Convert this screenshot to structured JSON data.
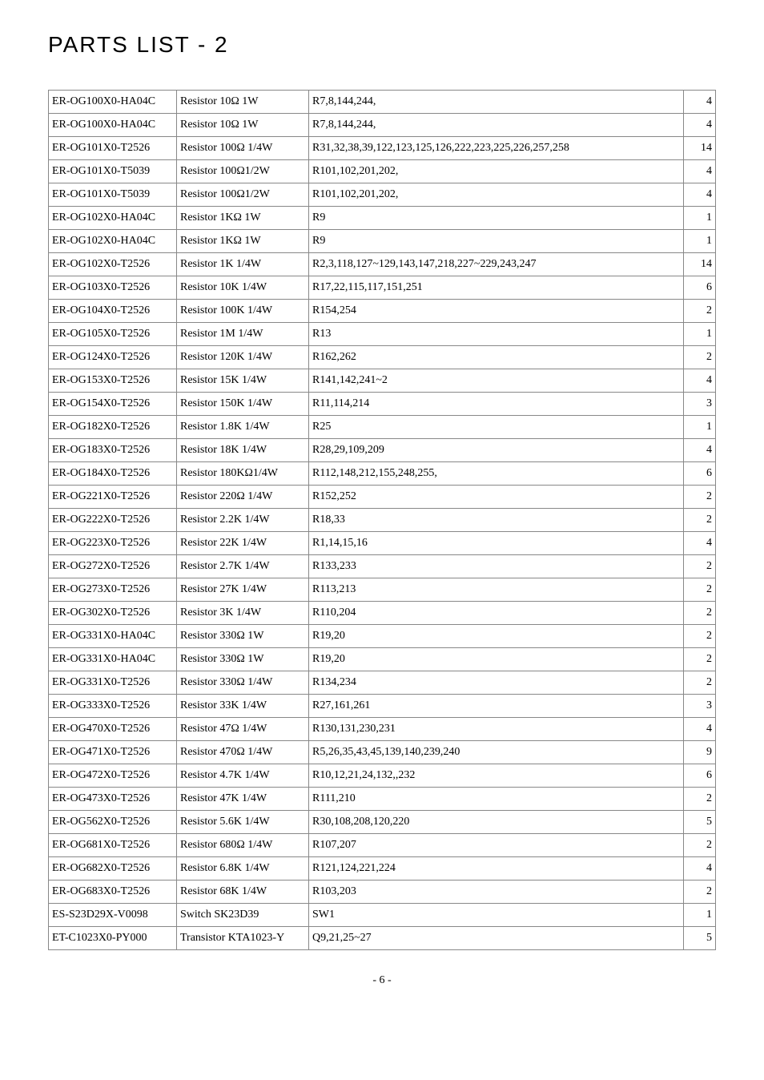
{
  "title": "PARTS LIST - 2",
  "page_number": "- 6 -",
  "table": {
    "columns": [
      "part_number",
      "description",
      "references",
      "qty"
    ],
    "rows": [
      [
        "ER-OG100X0-HA04C",
        "Resistor   10Ω  1W",
        "R7,8,144,244,",
        "4"
      ],
      [
        "ER-OG100X0-HA04C",
        "Resistor     10Ω  1W",
        "R7,8,144,244,",
        "4"
      ],
      [
        "ER-OG101X0-T2526",
        "Resistor   100Ω  1/4W",
        "R31,32,38,39,122,123,125,126,222,223,225,226,257,258",
        "14"
      ],
      [
        "ER-OG101X0-T5039",
        "Resistor     100Ω1/2W",
        "R101,102,201,202,",
        "4"
      ],
      [
        "ER-OG101X0-T5039",
        "Resistor     100Ω1/2W",
        "R101,102,201,202,",
        "4"
      ],
      [
        "ER-OG102X0-HA04C",
        "Resistor     1KΩ  1W",
        "R9",
        "1"
      ],
      [
        "ER-OG102X0-HA04C",
        "Resistor     1KΩ  1W",
        "R9",
        "1"
      ],
      [
        "ER-OG102X0-T2526",
        "Resistor   1K 1/4W",
        "R2,3,118,127~129,143,147,218,227~229,243,247",
        "14"
      ],
      [
        "ER-OG103X0-T2526",
        "Resistor     10K 1/4W",
        "R17,22,115,117,151,251",
        "6"
      ],
      [
        "ER-OG104X0-T2526",
        "Resistor   100K 1/4W",
        "R154,254",
        "2"
      ],
      [
        "ER-OG105X0-T2526",
        "Resistor     1M 1/4W",
        "R13",
        "1"
      ],
      [
        "ER-OG124X0-T2526",
        "Resistor   120K 1/4W",
        "R162,262",
        "2"
      ],
      [
        "ER-OG153X0-T2526",
        "Resistor   15K 1/4W",
        "R141,142,241~2",
        "4"
      ],
      [
        "ER-OG154X0-T2526",
        "Resistor   150K 1/4W",
        "R11,114,214",
        "3"
      ],
      [
        "ER-OG182X0-T2526",
        "Resistor   1.8K 1/4W",
        "R25",
        "1"
      ],
      [
        "ER-OG183X0-T2526",
        "Resistor   18K 1/4W",
        "R28,29,109,209",
        "4"
      ],
      [
        "ER-OG184X0-T2526",
        "Resistor   180KΩ1/4W",
        "R112,148,212,155,248,255,",
        "6"
      ],
      [
        "ER-OG221X0-T2526",
        "Resistor   220Ω  1/4W",
        "R152,252",
        "2"
      ],
      [
        "ER-OG222X0-T2526",
        "Resistor     2.2K 1/4W",
        "R18,33",
        "2"
      ],
      [
        "ER-OG223X0-T2526",
        "Resistor     22K 1/4W",
        "R1,14,15,16",
        "4"
      ],
      [
        "ER-OG272X0-T2526",
        "Resistor     2.7K 1/4W",
        "R133,233",
        "2"
      ],
      [
        "ER-OG273X0-T2526",
        "Resistor     27K 1/4W",
        "R113,213",
        "2"
      ],
      [
        "ER-OG302X0-T2526",
        "Resistor   3K 1/4W",
        "R110,204",
        "2"
      ],
      [
        "ER-OG331X0-HA04C",
        "Resistor     330Ω  1W",
        "R19,20",
        "2"
      ],
      [
        "ER-OG331X0-HA04C",
        "Resistor     330Ω  1W",
        "R19,20",
        "2"
      ],
      [
        "ER-OG331X0-T2526",
        "Resistor   330Ω  1/4W",
        "R134,234",
        "2"
      ],
      [
        "ER-OG333X0-T2526",
        "Resistor   33K 1/4W",
        "R27,161,261",
        "3"
      ],
      [
        "ER-OG470X0-T2526",
        "Resistor   47Ω  1/4W",
        "R130,131,230,231",
        "4"
      ],
      [
        "ER-OG471X0-T2526",
        "Resistor   470Ω  1/4W",
        "R5,26,35,43,45,139,140,239,240",
        "9"
      ],
      [
        "ER-OG472X0-T2526",
        "Resistor   4.7K 1/4W",
        "R10,12,21,24,132,,232",
        "6"
      ],
      [
        "ER-OG473X0-T2526",
        "Resistor   47K 1/4W",
        "R111,210",
        "2"
      ],
      [
        "ER-OG562X0-T2526",
        "Resistor   5.6K 1/4W",
        "R30,108,208,120,220",
        "5"
      ],
      [
        "ER-OG681X0-T2526",
        "Resistor   680Ω  1/4W",
        "R107,207",
        "2"
      ],
      [
        "ER-OG682X0-T2526",
        "Resistor   6.8K 1/4W",
        "R121,124,221,224",
        "4"
      ],
      [
        "ER-OG683X0-T2526",
        "Resistor     68K 1/4W",
        "R103,203",
        "2"
      ],
      [
        "ES-S23D29X-V0098",
        "Switch SK23D39",
        "SW1",
        "1"
      ],
      [
        "ET-C1023X0-PY000",
        "Transistor KTA1023-Y",
        "Q9,21,25~27",
        "5"
      ]
    ]
  }
}
